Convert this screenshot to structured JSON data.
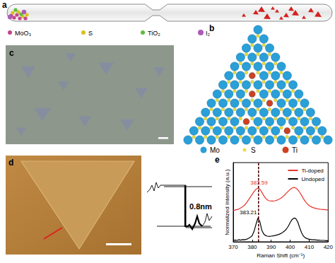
{
  "panels": {
    "a": {
      "label": "a",
      "legend": [
        {
          "label": "MoO₃",
          "color": "#c2478a"
        },
        {
          "label": "S",
          "color": "#d8c21f"
        },
        {
          "label": "TiO₂",
          "color": "#5dbb3f"
        },
        {
          "label": "I₂",
          "color": "#b05ab8"
        }
      ]
    },
    "b": {
      "label": "b",
      "rows": 13,
      "ti_sites": [
        [
          5,
          2
        ],
        [
          7,
          3
        ],
        [
          8,
          5
        ],
        [
          10,
          4
        ],
        [
          11,
          8
        ]
      ],
      "legend": [
        {
          "label": "Mo",
          "color": "#2a9fd8"
        },
        {
          "label": "S",
          "color": "#e8e040"
        },
        {
          "label": "Ti",
          "color": "#d04020"
        }
      ]
    },
    "c": {
      "label": "c"
    },
    "d": {
      "label": "d",
      "profile_label": "0.8nm"
    },
    "e": {
      "label": "e"
    }
  },
  "chart_data": {
    "type": "line",
    "x_label": "Raman Shift (cm⁻¹)",
    "y_label": "Normalized Intensity (a.u.)",
    "x": [
      370,
      371,
      372,
      373,
      374,
      375,
      376,
      377,
      378,
      379,
      380,
      381,
      382,
      383,
      384,
      385,
      386,
      387,
      388,
      389,
      390,
      391,
      392,
      393,
      394,
      395,
      396,
      397,
      398,
      399,
      400,
      401,
      402,
      403,
      404,
      405,
      406,
      407,
      408,
      409,
      410,
      411,
      412,
      413,
      414,
      415,
      416,
      417,
      418,
      419,
      420
    ],
    "series": [
      {
        "name": "Ti-doped",
        "color": "#e8332a",
        "line_style": "solid",
        "values": [
          1.1,
          1.12,
          1.14,
          1.16,
          1.2,
          1.24,
          1.3,
          1.38,
          1.48,
          1.58,
          1.68,
          1.78,
          1.86,
          1.9,
          1.86,
          1.76,
          1.64,
          1.54,
          1.48,
          1.45,
          1.44,
          1.44,
          1.45,
          1.47,
          1.5,
          1.54,
          1.59,
          1.65,
          1.72,
          1.79,
          1.85,
          1.9,
          1.92,
          1.9,
          1.84,
          1.75,
          1.64,
          1.52,
          1.42,
          1.34,
          1.28,
          1.24,
          1.21,
          1.19,
          1.17,
          1.16,
          1.15,
          1.14,
          1.14,
          1.13,
          1.13
        ]
      },
      {
        "name": "Undoped",
        "color": "#000000",
        "line_style": "solid",
        "values": [
          0.05,
          0.06,
          0.05,
          0.07,
          0.06,
          0.08,
          0.07,
          0.09,
          0.12,
          0.16,
          0.22,
          0.38,
          0.62,
          0.84,
          0.72,
          0.42,
          0.28,
          0.22,
          0.2,
          0.19,
          0.2,
          0.21,
          0.22,
          0.24,
          0.26,
          0.29,
          0.33,
          0.38,
          0.45,
          0.55,
          0.68,
          0.79,
          0.84,
          0.82,
          0.7,
          0.5,
          0.32,
          0.2,
          0.14,
          0.11,
          0.09,
          0.08,
          0.07,
          0.07,
          0.06,
          0.06,
          0.05,
          0.05,
          0.05,
          0.04,
          0.04
        ]
      }
    ],
    "xlim": [
      370,
      420
    ],
    "xticks": [
      370,
      380,
      390,
      400,
      410,
      420
    ],
    "ylim": [
      0,
      2.8
    ],
    "tick_labels": "x",
    "grid": false,
    "legend": "upper right",
    "annotations": [
      {
        "x": 383.59,
        "label": "383.59",
        "color": "#e8332a",
        "series": "Ti-doped"
      },
      {
        "x": 383.21,
        "label": "383.21",
        "color": "#000000",
        "series": "Undoped"
      }
    ]
  }
}
